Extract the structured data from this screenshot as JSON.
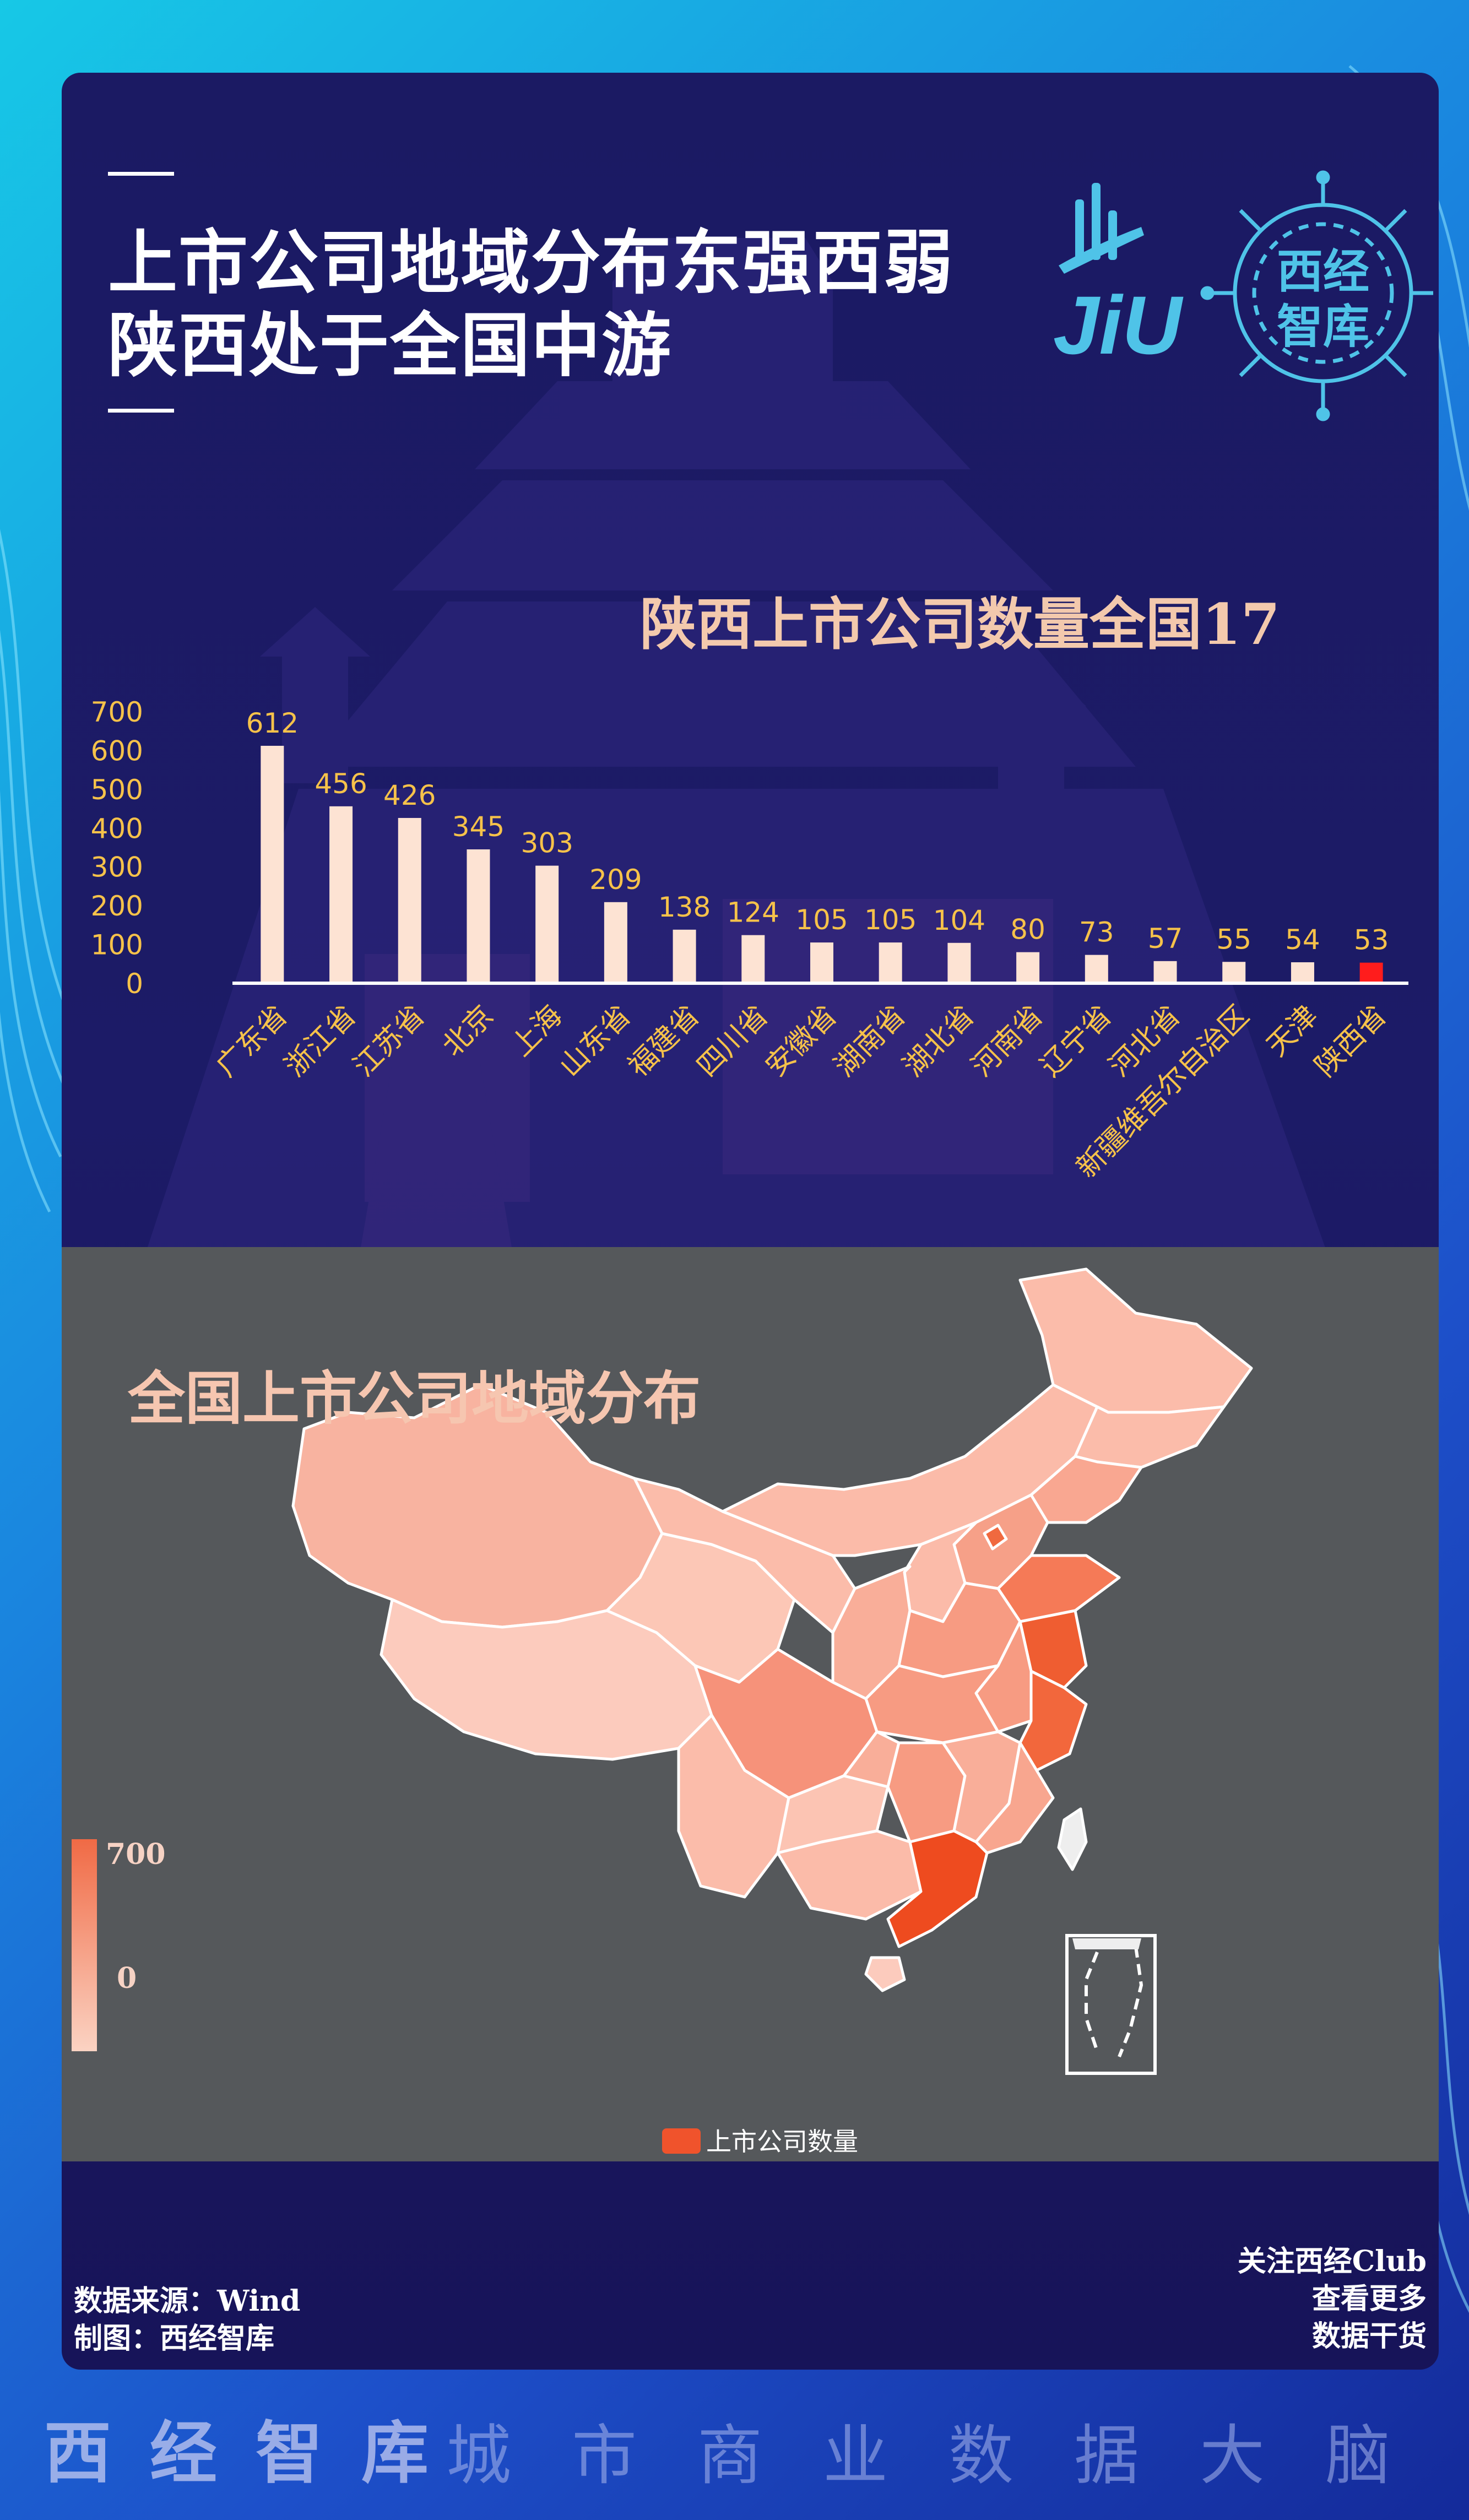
{
  "header": {
    "title_line1": "上市公司地域分布东强西弱",
    "title_line2": "陕西处于全国中游"
  },
  "logo": {
    "mark_text": "JiU",
    "badge_line1": "西经",
    "badge_line2": "智库",
    "accent_color": "#4fc3e8"
  },
  "chart_data": [
    {
      "type": "bar",
      "title": "陕西上市公司数量全国17",
      "categories": [
        "广东省",
        "浙江省",
        "江苏省",
        "北京",
        "上海",
        "山东省",
        "福建省",
        "四川省",
        "安徽省",
        "湖南省",
        "湖北省",
        "河南省",
        "辽宁省",
        "河北省",
        "新疆维吾尔自治区",
        "天津",
        "陕西省"
      ],
      "values": [
        612,
        456,
        426,
        345,
        303,
        209,
        138,
        124,
        105,
        105,
        104,
        80,
        73,
        57,
        55,
        54,
        53
      ],
      "ylim": [
        0,
        700
      ],
      "yticks": [
        "700",
        "600",
        "500",
        "400",
        "300",
        "200",
        "100",
        "0"
      ],
      "highlight_category": "陕西省",
      "bar_color": "#fde3d3",
      "highlight_color": "#ff1c1c",
      "label_color": "#f6c24a",
      "grid": false
    },
    {
      "type": "heatmap",
      "title": "全国上市公司地域分布",
      "visual_map": {
        "max_label": "700",
        "min_label": "0",
        "max_color": "#f06a45",
        "min_color": "#fbd3c3"
      },
      "legend": "上市公司数量",
      "legend_color": "#f0532c"
    }
  ],
  "footer": {
    "source": "数据来源：Wind",
    "maker": "制图：西经智库",
    "follow_line1": "关注西经Club",
    "follow_line2": "查看更多",
    "follow_line3": "数据干货"
  },
  "bottom_banner": {
    "brand": "西经智库",
    "slogan": [
      "城",
      "市",
      "商",
      "业",
      "数",
      "据",
      "大",
      "脑"
    ]
  }
}
